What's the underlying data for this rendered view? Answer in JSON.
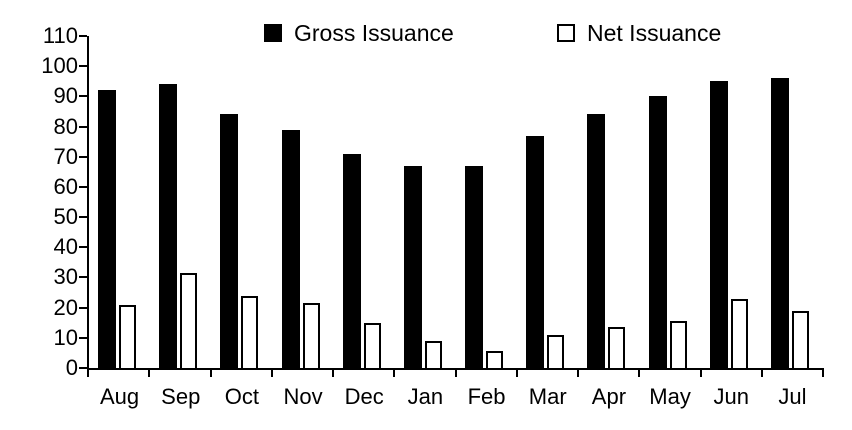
{
  "chart_data": {
    "type": "bar",
    "title": "",
    "xlabel": "",
    "ylabel": "",
    "categories": [
      "Aug",
      "Sep",
      "Oct",
      "Nov",
      "Dec",
      "Jan",
      "Feb",
      "Mar",
      "Apr",
      "May",
      "Jun",
      "Jul"
    ],
    "series": [
      {
        "name": "Gross Issuance",
        "values": [
          92,
          94,
          84,
          79,
          71,
          67,
          67,
          77,
          84,
          90,
          95,
          96
        ]
      },
      {
        "name": "Net Issuance",
        "values": [
          21,
          31.5,
          24,
          21.5,
          15,
          9,
          5.5,
          11,
          13.5,
          15.5,
          23,
          19
        ]
      }
    ],
    "ylim": [
      0,
      110
    ],
    "yticks": [
      0,
      10,
      20,
      30,
      40,
      50,
      60,
      70,
      80,
      90,
      100,
      110
    ],
    "grid": false,
    "legend_position": "top",
    "colors": {
      "gross_fill": "#000000",
      "net_fill": "#ffffff",
      "net_border": "#000000",
      "axis": "#000000",
      "background": "#ffffff"
    }
  }
}
